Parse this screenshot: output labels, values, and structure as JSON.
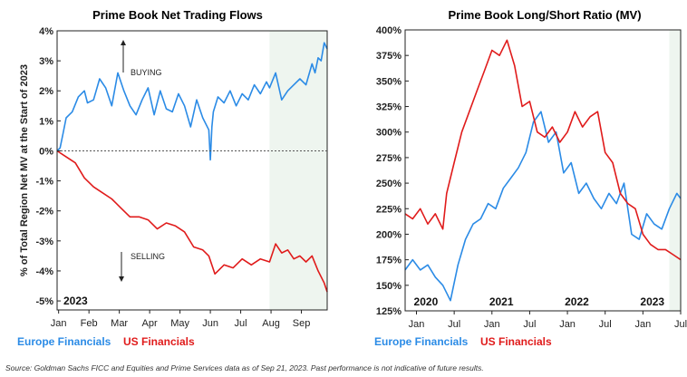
{
  "source_note": "Source: Goldman Sachs FICC and Equities and Prime Services data as of Sep 21, 2023. Past performance is not indicative of future results.",
  "colors": {
    "europe": "#2b8be6",
    "us": "#e01b1b",
    "shade": "#eef5ef"
  },
  "chart_data": [
    {
      "type": "line",
      "title": "Prime Book Net Trading Flows",
      "ylabel": "% of Total Region Net MV at the Start of 2023",
      "year_label": "2023",
      "x_ticks": [
        "Jan",
        "Feb",
        "Mar",
        "Apr",
        "May",
        "Jun",
        "Jul",
        "Aug",
        "Sep"
      ],
      "x_range": [
        0,
        8.9
      ],
      "y_ticks": [
        "4%",
        "3%",
        "2%",
        "1%",
        "0%",
        "-1%",
        "-2%",
        "-3%",
        "-4%",
        "-5%"
      ],
      "ylim": [
        -5.3,
        4
      ],
      "shaded_from_x": 7.0,
      "annotations": {
        "up": "BUYING",
        "down": "SELLING"
      },
      "legend": [
        "Europe Financials",
        "US Financials"
      ],
      "series": [
        {
          "name": "Europe Financials",
          "x": [
            0,
            0.1,
            0.2,
            0.3,
            0.5,
            0.7,
            0.9,
            1.0,
            1.2,
            1.4,
            1.6,
            1.8,
            2.0,
            2.2,
            2.4,
            2.6,
            2.8,
            3.0,
            3.2,
            3.4,
            3.6,
            3.8,
            4.0,
            4.2,
            4.4,
            4.6,
            4.8,
            5.0,
            5.05,
            5.1,
            5.15,
            5.3,
            5.5,
            5.7,
            5.9,
            6.1,
            6.3,
            6.5,
            6.7,
            6.9,
            7.0,
            7.2,
            7.4,
            7.6,
            7.8,
            8.0,
            8.2,
            8.4,
            8.5,
            8.6,
            8.7,
            8.8,
            8.9
          ],
          "values": [
            0,
            0.1,
            0.6,
            1.1,
            1.3,
            1.8,
            2.0,
            1.6,
            1.7,
            2.4,
            2.1,
            1.5,
            2.6,
            2.0,
            1.5,
            1.2,
            1.7,
            2.1,
            1.2,
            2.0,
            1.4,
            1.3,
            1.9,
            1.5,
            0.8,
            1.7,
            1.1,
            0.7,
            -0.3,
            0.8,
            1.3,
            1.8,
            1.6,
            2.0,
            1.5,
            1.9,
            1.7,
            2.2,
            1.9,
            2.3,
            2.1,
            2.6,
            1.7,
            2.0,
            2.2,
            2.4,
            2.2,
            2.9,
            2.6,
            3.1,
            3.0,
            3.6,
            3.4
          ]
        },
        {
          "name": "US Financials",
          "x": [
            0,
            0.3,
            0.6,
            0.9,
            1.2,
            1.5,
            1.8,
            2.1,
            2.4,
            2.7,
            3.0,
            3.3,
            3.6,
            3.9,
            4.2,
            4.5,
            4.8,
            5.0,
            5.2,
            5.5,
            5.8,
            6.1,
            6.4,
            6.7,
            7.0,
            7.2,
            7.4,
            7.6,
            7.8,
            8.0,
            8.2,
            8.4,
            8.6,
            8.8,
            8.9
          ],
          "values": [
            0,
            -0.2,
            -0.4,
            -0.9,
            -1.2,
            -1.4,
            -1.6,
            -1.9,
            -2.2,
            -2.2,
            -2.3,
            -2.6,
            -2.4,
            -2.5,
            -2.7,
            -3.2,
            -3.3,
            -3.5,
            -4.1,
            -3.8,
            -3.9,
            -3.6,
            -3.8,
            -3.6,
            -3.7,
            -3.1,
            -3.4,
            -3.3,
            -3.6,
            -3.5,
            -3.7,
            -3.5,
            -4.0,
            -4.4,
            -4.7
          ]
        }
      ]
    },
    {
      "type": "line",
      "title": "Prime Book Long/Short Ratio (MV)",
      "x_ticks": [
        "Jan",
        "Jul",
        "Jan",
        "Jul",
        "Jan",
        "Jul",
        "Jan",
        "Jul"
      ],
      "year_labels": [
        "2020",
        "2021",
        "2022",
        "2023"
      ],
      "x_range": [
        0,
        7.3
      ],
      "y_ticks": [
        "400%",
        "375%",
        "350%",
        "325%",
        "300%",
        "275%",
        "250%",
        "225%",
        "200%",
        "175%",
        "150%",
        "125%"
      ],
      "ylim": [
        125,
        400
      ],
      "shaded_from_x": 7.0,
      "legend": [
        "Europe Financials",
        "US Financials"
      ],
      "series": [
        {
          "name": "Europe Financials",
          "x": [
            0,
            0.2,
            0.4,
            0.6,
            0.8,
            1.0,
            1.2,
            1.4,
            1.6,
            1.8,
            2.0,
            2.2,
            2.4,
            2.6,
            2.8,
            3.0,
            3.2,
            3.4,
            3.6,
            3.8,
            4.0,
            4.2,
            4.4,
            4.6,
            4.8,
            5.0,
            5.2,
            5.4,
            5.6,
            5.8,
            6.0,
            6.2,
            6.4,
            6.6,
            6.8,
            7.0,
            7.2,
            7.3
          ],
          "values": [
            165,
            175,
            165,
            170,
            158,
            150,
            135,
            170,
            195,
            210,
            215,
            230,
            225,
            245,
            255,
            265,
            280,
            310,
            320,
            290,
            300,
            260,
            270,
            240,
            250,
            235,
            225,
            240,
            230,
            250,
            200,
            195,
            220,
            210,
            205,
            225,
            240,
            235
          ]
        },
        {
          "name": "US Financials",
          "x": [
            0,
            0.2,
            0.4,
            0.6,
            0.8,
            1.0,
            1.1,
            1.3,
            1.5,
            1.7,
            1.9,
            2.1,
            2.3,
            2.5,
            2.7,
            2.9,
            3.1,
            3.3,
            3.5,
            3.7,
            3.9,
            4.1,
            4.3,
            4.5,
            4.7,
            4.9,
            5.1,
            5.3,
            5.5,
            5.7,
            5.9,
            6.1,
            6.3,
            6.5,
            6.7,
            6.9,
            7.1,
            7.3
          ],
          "values": [
            220,
            215,
            225,
            210,
            220,
            205,
            240,
            270,
            300,
            320,
            340,
            360,
            380,
            375,
            390,
            365,
            325,
            330,
            300,
            295,
            305,
            290,
            300,
            320,
            305,
            315,
            320,
            280,
            270,
            240,
            230,
            225,
            200,
            190,
            185,
            185,
            180,
            175
          ]
        }
      ]
    }
  ]
}
